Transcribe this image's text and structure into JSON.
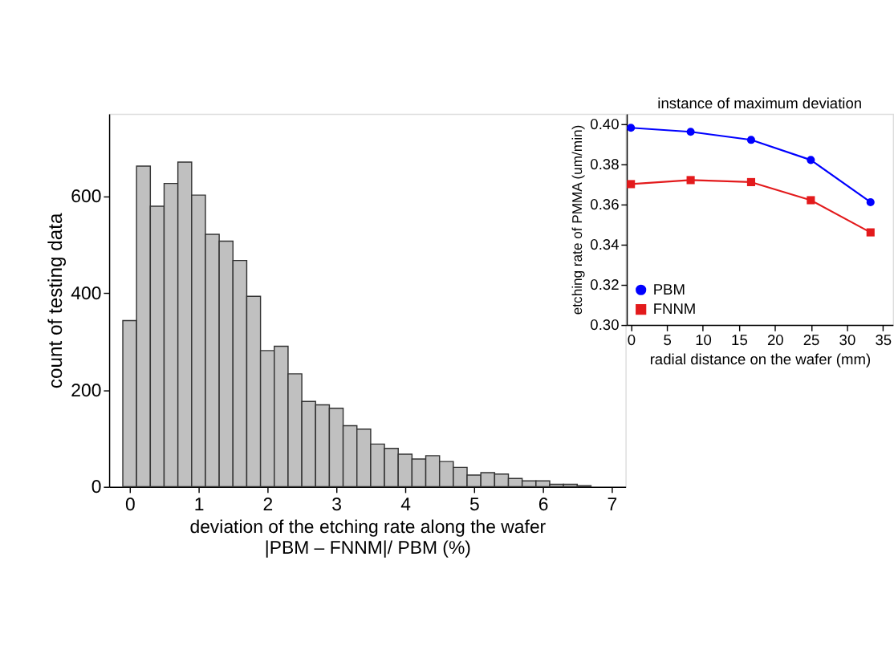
{
  "chart_data": [
    {
      "type": "histogram",
      "xlabel": "deviation of the etching rate along the wafer\n|PBM – FNNM|/ PBM (%)",
      "ylabel": "count of testing data",
      "color": "#c0c0c0",
      "bins": [
        -0.1,
        0.1,
        0.3,
        0.5,
        0.7,
        0.9,
        1.1,
        1.3,
        1.5,
        1.7,
        1.9,
        2.1,
        2.3,
        2.5,
        2.7,
        2.9,
        3.1,
        3.3,
        3.5,
        3.7,
        3.9,
        4.1,
        4.3,
        4.5,
        4.7,
        4.9,
        5.1,
        5.3,
        5.5,
        5.7,
        5.9,
        6.1,
        6.3,
        6.5,
        6.7
      ],
      "values": [
        343,
        662,
        579,
        626,
        670,
        602,
        521,
        507,
        467,
        393,
        281,
        290,
        233,
        176,
        169,
        162,
        126,
        119,
        88,
        79,
        67,
        57,
        64,
        52,
        40,
        24,
        29,
        26,
        17,
        12,
        12,
        5,
        5,
        2
      ],
      "xlim": [
        -0.3,
        7.2
      ],
      "ylim": [
        0,
        770
      ],
      "xticks": [
        0,
        1,
        2,
        3,
        4,
        5,
        6,
        7
      ],
      "yticks": [
        0,
        200,
        400,
        600
      ],
      "grid": false
    },
    {
      "type": "line",
      "title": "instance of maximum deviation",
      "xlabel": "radial distance on the wafer (mm)",
      "ylabel": "etching rate of PMMA (um/min)",
      "x": [
        0,
        8.3,
        16.7,
        25,
        33.3
      ],
      "series": [
        {
          "name": "PBM",
          "color": "#0000ff",
          "marker": "circle",
          "values": [
            0.398,
            0.396,
            0.392,
            0.382,
            0.361
          ]
        },
        {
          "name": "FNNM",
          "color": "#e31a1c",
          "marker": "square",
          "values": [
            0.37,
            0.372,
            0.371,
            0.362,
            0.346
          ]
        }
      ],
      "xlim": [
        -0.6,
        36.4
      ],
      "ylim": [
        0.3,
        0.405
      ],
      "xticks": [
        0,
        5,
        10,
        15,
        20,
        25,
        30,
        35
      ],
      "yticks": [
        {
          "value": 0.3,
          "label": "0.30"
        },
        {
          "value": 0.32,
          "label": "0.32"
        },
        {
          "value": 0.34,
          "label": "0.34"
        },
        {
          "value": 0.36,
          "label": "0.36"
        },
        {
          "value": 0.38,
          "label": "0.38"
        },
        {
          "value": 0.4,
          "label": "0.40"
        }
      ],
      "legend": "bottom left",
      "grid": false,
      "line_style": "solid"
    }
  ]
}
